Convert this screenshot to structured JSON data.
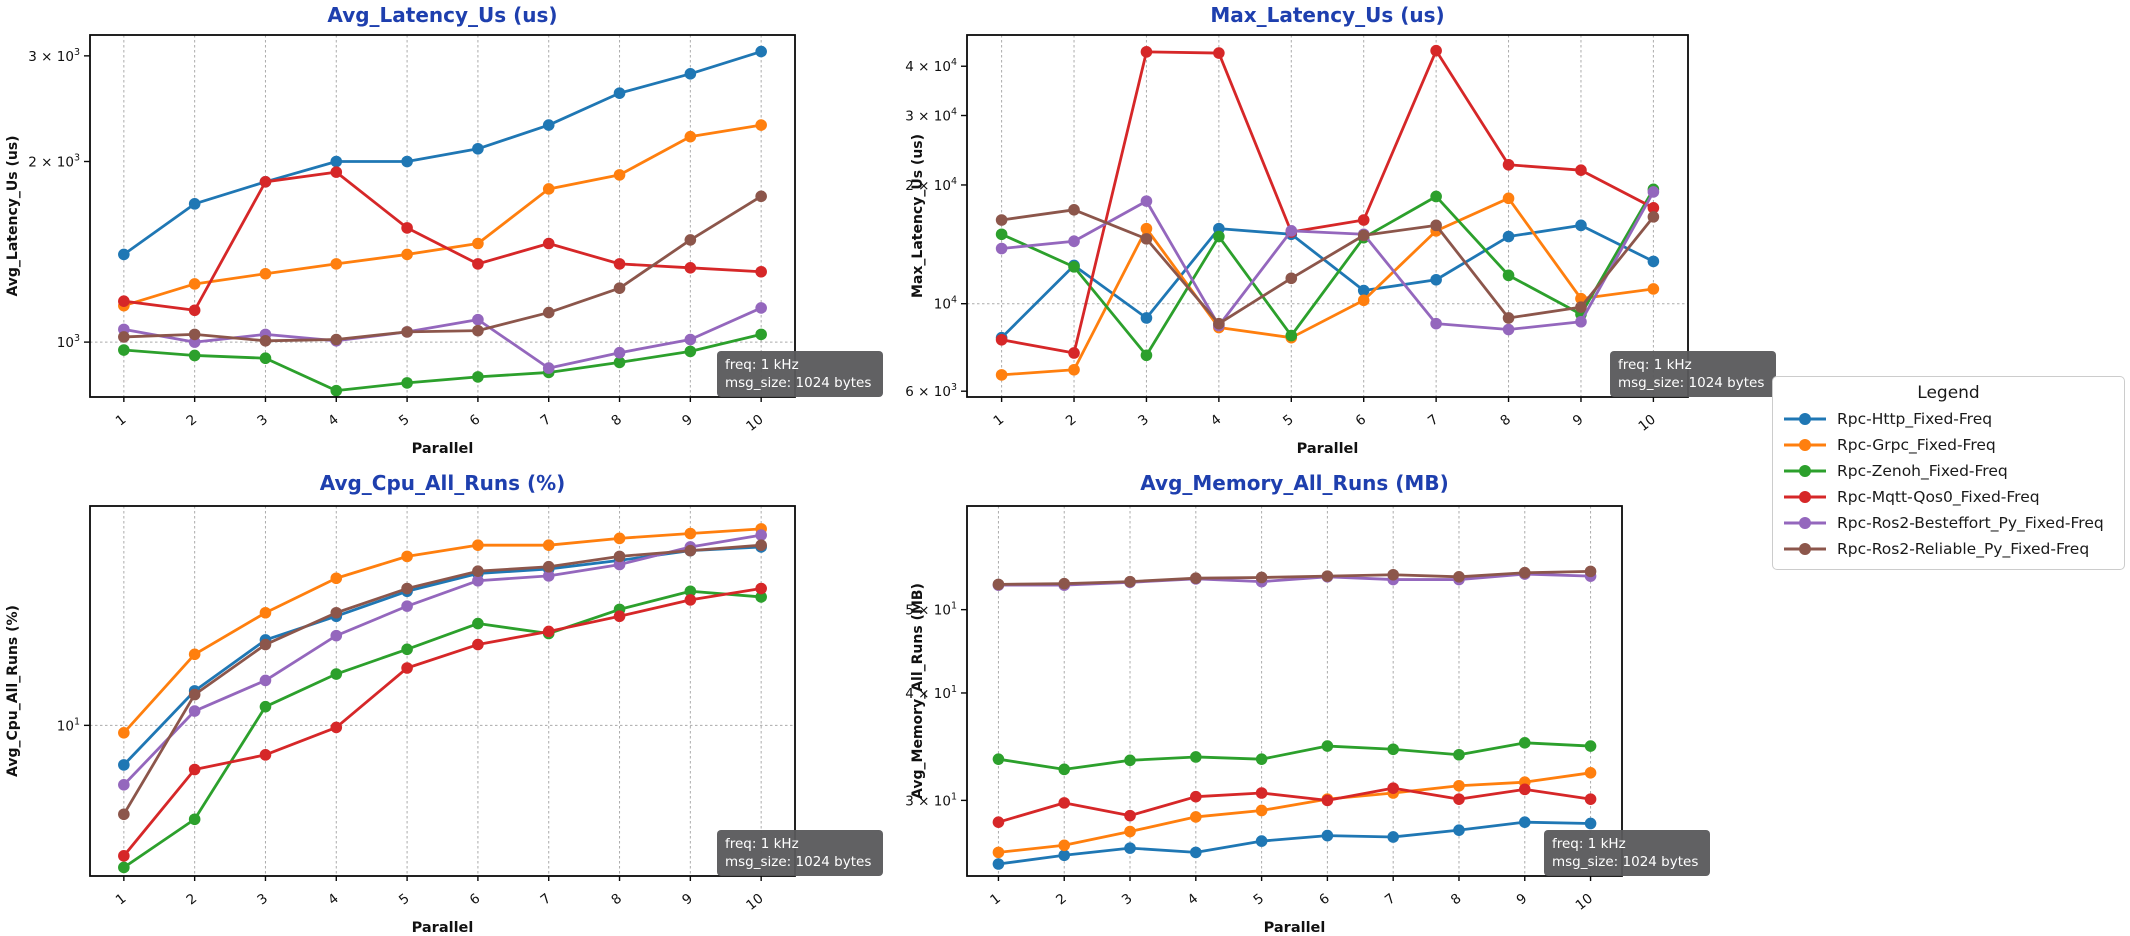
{
  "figure": {
    "title_color": "#1e3fae",
    "xlabel": "Parallel",
    "x": [
      1,
      2,
      3,
      4,
      5,
      6,
      7,
      8,
      9,
      10
    ]
  },
  "annotation": {
    "line1": "freq: 1 kHz",
    "line2": "msg_size: 1024 bytes",
    "bg": "#58595b",
    "text_color": "#ffffff"
  },
  "legend": {
    "title": "Legend",
    "entries": [
      {
        "label": "Rpc-Http_Fixed-Freq",
        "color": "#1f77b4"
      },
      {
        "label": "Rpc-Grpc_Fixed-Freq",
        "color": "#ff7f0e"
      },
      {
        "label": "Rpc-Zenoh_Fixed-Freq",
        "color": "#2ca02c"
      },
      {
        "label": "Rpc-Mqtt-Qos0_Fixed-Freq",
        "color": "#d62728"
      },
      {
        "label": "Rpc-Ros2-Besteffort_Py_Fixed-Freq",
        "color": "#9467bd"
      },
      {
        "label": "Rpc-Ros2-Reliable_Py_Fixed-Freq",
        "color": "#8c564b"
      }
    ]
  },
  "chart_data": [
    {
      "type": "line",
      "title": "Avg_Latency_Us  (us)",
      "ylabel": "Avg_Latency_Us (us)",
      "xlabel": "Parallel",
      "yscale": "log",
      "ylim": [
        810,
        3250
      ],
      "x": [
        1,
        2,
        3,
        4,
        5,
        6,
        7,
        8,
        9,
        10
      ],
      "yticks": [
        {
          "v": 1000,
          "coef": "",
          "exp": "3",
          "grid": true
        },
        {
          "v": 2000,
          "coef": "2",
          "exp": "3",
          "grid": false
        },
        {
          "v": 3000,
          "coef": "3",
          "exp": "3",
          "grid": false
        }
      ],
      "series": [
        {
          "name": "Rpc-Http_Fixed-Freq",
          "color": "#1f77b4",
          "values": [
            1400,
            1700,
            1850,
            2000,
            2000,
            2100,
            2300,
            2600,
            2800,
            3050
          ]
        },
        {
          "name": "Rpc-Grpc_Fixed-Freq",
          "color": "#ff7f0e",
          "values": [
            1150,
            1250,
            1300,
            1350,
            1400,
            1460,
            1800,
            1900,
            2200,
            2300
          ]
        },
        {
          "name": "Rpc-Zenoh_Fixed-Freq",
          "color": "#2ca02c",
          "values": [
            970,
            950,
            940,
            830,
            855,
            875,
            890,
            925,
            965,
            1030
          ]
        },
        {
          "name": "Rpc-Mqtt-Qos0_Fixed-Freq",
          "color": "#d62728",
          "values": [
            1170,
            1130,
            1850,
            1920,
            1550,
            1350,
            1460,
            1350,
            1330,
            1310
          ]
        },
        {
          "name": "Rpc-Ros2-Besteffort_Py_Fixed-Freq",
          "color": "#9467bd",
          "values": [
            1050,
            1000,
            1030,
            1005,
            1040,
            1090,
            905,
            960,
            1010,
            1140
          ]
        },
        {
          "name": "Rpc-Ros2-Reliable_Py_Fixed-Freq",
          "color": "#8c564b",
          "values": [
            1020,
            1030,
            1005,
            1010,
            1040,
            1045,
            1120,
            1230,
            1480,
            1750
          ]
        }
      ]
    },
    {
      "type": "line",
      "title": "Max_Latency_Us  (us)",
      "ylabel": "Max_Latency_Us (us)",
      "xlabel": "Parallel",
      "yscale": "log",
      "ylim": [
        5800,
        48000
      ],
      "x": [
        1,
        2,
        3,
        4,
        5,
        6,
        7,
        8,
        9,
        10
      ],
      "yticks": [
        {
          "v": 6000,
          "coef": "6",
          "exp": "3",
          "grid": false
        },
        {
          "v": 10000,
          "coef": "",
          "exp": "4",
          "grid": true
        },
        {
          "v": 20000,
          "coef": "2",
          "exp": "4",
          "grid": false
        },
        {
          "v": 30000,
          "coef": "3",
          "exp": "4",
          "grid": false
        },
        {
          "v": 40000,
          "coef": "4",
          "exp": "4",
          "grid": false
        }
      ],
      "series": [
        {
          "name": "Rpc-Http_Fixed-Freq",
          "color": "#1f77b4",
          "values": [
            8200,
            12500,
            9200,
            15500,
            15000,
            10800,
            11500,
            14800,
            15800,
            12800
          ]
        },
        {
          "name": "Rpc-Grpc_Fixed-Freq",
          "color": "#ff7f0e",
          "values": [
            6600,
            6800,
            15500,
            8700,
            8200,
            10200,
            15300,
            18500,
            10300,
            10900
          ]
        },
        {
          "name": "Rpc-Zenoh_Fixed-Freq",
          "color": "#2ca02c",
          "values": [
            15000,
            12400,
            7400,
            14800,
            8300,
            14700,
            18700,
            11800,
            9400,
            19500
          ]
        },
        {
          "name": "Rpc-Mqtt-Qos0_Fixed-Freq",
          "color": "#d62728",
          "values": [
            8100,
            7500,
            43500,
            43200,
            15200,
            16300,
            43800,
            22500,
            21800,
            17500
          ]
        },
        {
          "name": "Rpc-Ros2-Besteffort_Py_Fixed-Freq",
          "color": "#9467bd",
          "values": [
            13800,
            14400,
            18200,
            8800,
            15300,
            15000,
            8900,
            8600,
            9000,
            19200
          ]
        },
        {
          "name": "Rpc-Ros2-Reliable_Py_Fixed-Freq",
          "color": "#8c564b",
          "values": [
            16300,
            17300,
            14600,
            8900,
            11600,
            14900,
            15800,
            9200,
            9800,
            16600
          ]
        }
      ]
    },
    {
      "type": "line",
      "title": "Avg_Cpu_All_Runs  (%)",
      "ylabel": "Avg_Cpu_All_Runs (%)",
      "xlabel": "Parallel",
      "yscale": "log",
      "ylim": [
        2.3,
        85
      ],
      "x": [
        1,
        2,
        3,
        4,
        5,
        6,
        7,
        8,
        9,
        10
      ],
      "yticks": [
        {
          "v": 10,
          "coef": "",
          "exp": "1",
          "grid": true
        }
      ],
      "series": [
        {
          "name": "Rpc-Http_Fixed-Freq",
          "color": "#1f77b4",
          "values": [
            6.8,
            14,
            23,
            29,
            37,
            44,
            46,
            50,
            55,
            57
          ]
        },
        {
          "name": "Rpc-Grpc_Fixed-Freq",
          "color": "#ff7f0e",
          "values": [
            9.3,
            20,
            30,
            42,
            52,
            58,
            58,
            62,
            65,
            68
          ]
        },
        {
          "name": "Rpc-Zenoh_Fixed-Freq",
          "color": "#2ca02c",
          "values": [
            2.5,
            4.0,
            12,
            16.5,
            21,
            27,
            24.5,
            31,
            37,
            35
          ]
        },
        {
          "name": "Rpc-Mqtt-Qos0_Fixed-Freq",
          "color": "#d62728",
          "values": [
            2.8,
            6.5,
            7.5,
            9.8,
            17.5,
            22,
            25,
            29,
            34,
            38
          ]
        },
        {
          "name": "Rpc-Ros2-Besteffort_Py_Fixed-Freq",
          "color": "#9467bd",
          "values": [
            5.6,
            11.5,
            15.5,
            24,
            32,
            41,
            43,
            48,
            57,
            64
          ]
        },
        {
          "name": "Rpc-Ros2-Reliable_Py_Fixed-Freq",
          "color": "#8c564b",
          "values": [
            4.2,
            13.5,
            22,
            30,
            38,
            45,
            47,
            52,
            55,
            58
          ]
        }
      ]
    },
    {
      "type": "line",
      "title": "Avg_Memory_All_Runs  (MB)",
      "ylabel": "Avg_Memory_All_Runs (MB)",
      "xlabel": "Parallel",
      "yscale": "log",
      "ylim": [
        24.5,
        66
      ],
      "x": [
        1,
        2,
        3,
        4,
        5,
        6,
        7,
        8,
        9,
        10
      ],
      "yticks": [
        {
          "v": 30,
          "coef": "3",
          "exp": "1",
          "grid": false
        },
        {
          "v": 40,
          "coef": "4",
          "exp": "1",
          "grid": false
        },
        {
          "v": 50,
          "coef": "5",
          "exp": "1",
          "grid": false
        }
      ],
      "series": [
        {
          "name": "Rpc-Http_Fixed-Freq",
          "color": "#1f77b4",
          "values": [
            25.3,
            25.9,
            26.4,
            26.1,
            26.9,
            27.3,
            27.2,
            27.7,
            28.3,
            28.2
          ]
        },
        {
          "name": "Rpc-Grpc_Fixed-Freq",
          "color": "#ff7f0e",
          "values": [
            26.1,
            26.6,
            27.6,
            28.7,
            29.2,
            30.1,
            30.6,
            31.2,
            31.5,
            32.3
          ]
        },
        {
          "name": "Rpc-Zenoh_Fixed-Freq",
          "color": "#2ca02c",
          "values": [
            33.5,
            32.6,
            33.4,
            33.7,
            33.5,
            34.7,
            34.4,
            33.9,
            35.0,
            34.7
          ]
        },
        {
          "name": "Rpc-Mqtt-Qos0_Fixed-Freq",
          "color": "#d62728",
          "values": [
            28.3,
            29.8,
            28.8,
            30.3,
            30.6,
            30.0,
            31.0,
            30.1,
            30.9,
            30.1
          ]
        },
        {
          "name": "Rpc-Ros2-Besteffort_Py_Fixed-Freq",
          "color": "#9467bd",
          "values": [
            53.4,
            53.4,
            53.8,
            54.3,
            53.9,
            54.6,
            54.2,
            54.2,
            55.0,
            54.7
          ]
        },
        {
          "name": "Rpc-Ros2-Reliable_Py_Fixed-Freq",
          "color": "#8c564b",
          "values": [
            53.5,
            53.6,
            53.9,
            54.4,
            54.5,
            54.7,
            54.9,
            54.6,
            55.2,
            55.4
          ]
        }
      ]
    }
  ]
}
